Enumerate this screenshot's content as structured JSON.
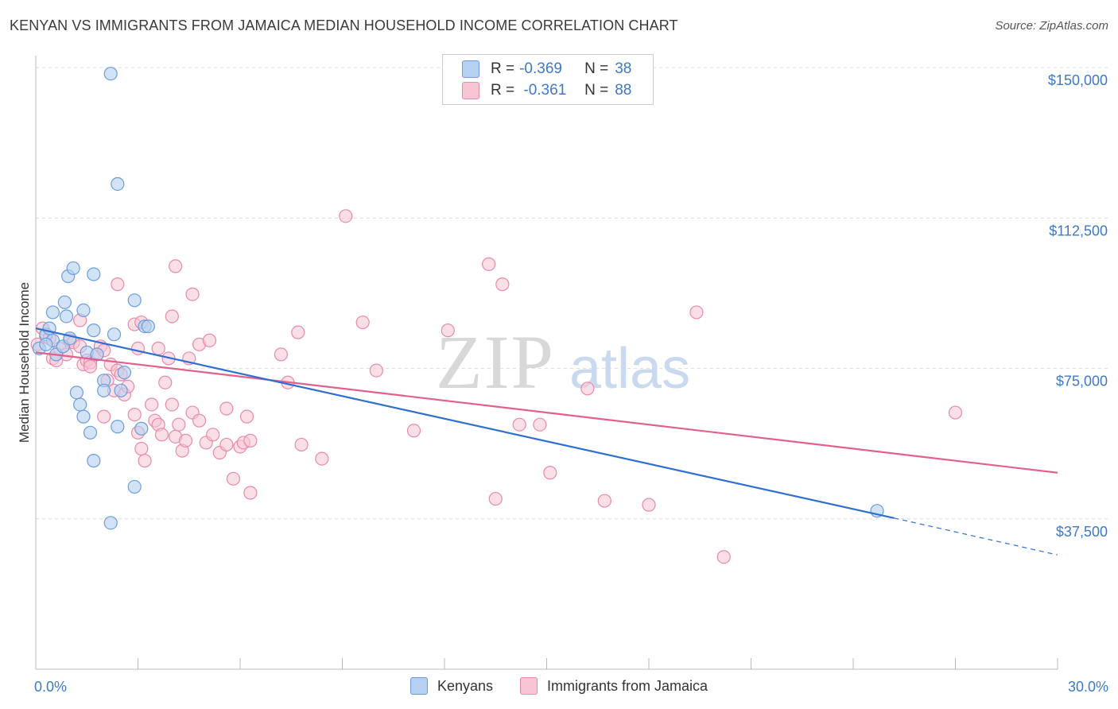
{
  "title": "KENYAN VS IMMIGRANTS FROM JAMAICA MEDIAN HOUSEHOLD INCOME CORRELATION CHART",
  "source": "Source: ZipAtlas.com",
  "watermark": {
    "zip": "ZIP",
    "atlas": "atlas"
  },
  "legend": {
    "rows": [
      {
        "r_label": "R = ",
        "r_value": "-0.369",
        "n_label": "N = ",
        "n_value": "38"
      },
      {
        "r_label": "R = ",
        "r_value": " -0.361",
        "n_label": "N = ",
        "n_value": "88"
      }
    ]
  },
  "bottom_legend": {
    "s1": "Kenyans",
    "s2": "Immigrants from Jamaica"
  },
  "colors": {
    "kenyan_fill": "#b5d0f0",
    "kenyan_stroke": "#6a9ddb",
    "kenyan_line": "#2f6fcf",
    "jamaica_fill": "#f8c5d4",
    "jamaica_stroke": "#e88aa8",
    "jamaica_line": "#e0608e",
    "axis_text": "#3d79c6"
  },
  "chart_data": {
    "type": "scatter",
    "title": "KENYAN VS IMMIGRANTS FROM JAMAICA MEDIAN HOUSEHOLD INCOME CORRELATION CHART",
    "xlabel": "",
    "ylabel": "Median Household Income",
    "xlim": [
      0,
      30
    ],
    "ylim": [
      0,
      153000
    ],
    "x_tick_labels": [
      "0.0%",
      "30.0%"
    ],
    "y_ticks": [
      37500,
      75000,
      112500,
      150000
    ],
    "y_tick_labels": [
      "$37,500",
      "$75,000",
      "$112,500",
      "$150,000"
    ],
    "grid": true,
    "legend_position": "top-center",
    "series": [
      {
        "name": "Kenyans",
        "r": -0.369,
        "n": 38,
        "points": [
          [
            0.1,
            80000
          ],
          [
            0.3,
            83500
          ],
          [
            0.5,
            82000
          ],
          [
            0.4,
            85000
          ],
          [
            0.6,
            78500
          ],
          [
            0.8,
            80500
          ],
          [
            1.0,
            82500
          ],
          [
            0.9,
            88000
          ],
          [
            0.5,
            89000
          ],
          [
            0.85,
            91500
          ],
          [
            0.95,
            98000
          ],
          [
            1.1,
            100000
          ],
          [
            1.4,
            89500
          ],
          [
            1.5,
            79000
          ],
          [
            1.7,
            84500
          ],
          [
            1.8,
            78500
          ],
          [
            1.2,
            69000
          ],
          [
            1.3,
            66000
          ],
          [
            1.4,
            63000
          ],
          [
            1.6,
            59000
          ],
          [
            1.7,
            52000
          ],
          [
            2.0,
            72000
          ],
          [
            2.0,
            69500
          ],
          [
            2.3,
            83500
          ],
          [
            2.4,
            60500
          ],
          [
            2.5,
            69500
          ],
          [
            2.6,
            74000
          ],
          [
            2.4,
            121000
          ],
          [
            2.2,
            148500
          ],
          [
            2.9,
            92000
          ],
          [
            3.2,
            85500
          ],
          [
            3.3,
            85500
          ],
          [
            3.1,
            60000
          ],
          [
            2.9,
            45500
          ],
          [
            2.2,
            36500
          ],
          [
            1.7,
            98500
          ],
          [
            0.3,
            81000
          ],
          [
            24.7,
            39500
          ]
        ],
        "trend": {
          "x": [
            0,
            25.2
          ],
          "y": [
            85000,
            37700
          ]
        },
        "trend_dashed": {
          "x": [
            25.2,
            30
          ],
          "y": [
            37700,
            28500
          ]
        }
      },
      {
        "name": "Immigrants from Jamaica",
        "r": -0.361,
        "n": 88,
        "points": [
          [
            0.05,
            81000
          ],
          [
            0.2,
            85000
          ],
          [
            0.3,
            83000
          ],
          [
            0.4,
            82500
          ],
          [
            0.5,
            77500
          ],
          [
            0.6,
            77000
          ],
          [
            0.7,
            80000
          ],
          [
            0.9,
            78500
          ],
          [
            1.0,
            82000
          ],
          [
            1.1,
            81500
          ],
          [
            1.3,
            80500
          ],
          [
            1.4,
            76000
          ],
          [
            1.5,
            77000
          ],
          [
            1.6,
            76500
          ],
          [
            1.6,
            75500
          ],
          [
            1.8,
            78500
          ],
          [
            1.9,
            80500
          ],
          [
            2.0,
            79500
          ],
          [
            2.1,
            72000
          ],
          [
            2.2,
            76000
          ],
          [
            2.3,
            69500
          ],
          [
            2.4,
            74500
          ],
          [
            2.5,
            73500
          ],
          [
            2.6,
            68500
          ],
          [
            2.7,
            70500
          ],
          [
            2.9,
            63500
          ],
          [
            3.0,
            59000
          ],
          [
            3.1,
            55000
          ],
          [
            3.2,
            52000
          ],
          [
            3.4,
            66000
          ],
          [
            3.5,
            62000
          ],
          [
            3.6,
            61000
          ],
          [
            3.7,
            58500
          ],
          [
            3.8,
            71500
          ],
          [
            3.9,
            77500
          ],
          [
            4.0,
            66000
          ],
          [
            4.1,
            58000
          ],
          [
            4.2,
            61000
          ],
          [
            4.3,
            54500
          ],
          [
            4.4,
            57000
          ],
          [
            4.5,
            77500
          ],
          [
            4.6,
            64000
          ],
          [
            4.8,
            62000
          ],
          [
            5.0,
            56500
          ],
          [
            5.2,
            58500
          ],
          [
            5.4,
            54000
          ],
          [
            5.6,
            56000
          ],
          [
            5.8,
            47500
          ],
          [
            6.0,
            55500
          ],
          [
            6.1,
            56500
          ],
          [
            6.3,
            44000
          ],
          [
            2.0,
            63000
          ],
          [
            1.3,
            87000
          ],
          [
            2.4,
            96000
          ],
          [
            2.9,
            86000
          ],
          [
            3.1,
            86500
          ],
          [
            3.0,
            80000
          ],
          [
            3.6,
            80000
          ],
          [
            4.0,
            88000
          ],
          [
            4.1,
            100500
          ],
          [
            4.8,
            81000
          ],
          [
            4.6,
            93500
          ],
          [
            5.1,
            82000
          ],
          [
            5.6,
            65000
          ],
          [
            6.2,
            63000
          ],
          [
            6.3,
            57000
          ],
          [
            7.2,
            78500
          ],
          [
            7.4,
            71500
          ],
          [
            7.7,
            84000
          ],
          [
            7.8,
            56000
          ],
          [
            8.4,
            52500
          ],
          [
            9.1,
            113000
          ],
          [
            9.6,
            86500
          ],
          [
            10.0,
            74500
          ],
          [
            11.1,
            59500
          ],
          [
            12.1,
            84500
          ],
          [
            13.3,
            101000
          ],
          [
            13.7,
            96000
          ],
          [
            13.5,
            42500
          ],
          [
            14.2,
            61000
          ],
          [
            14.8,
            61000
          ],
          [
            15.1,
            49000
          ],
          [
            16.2,
            70000
          ],
          [
            16.7,
            42000
          ],
          [
            18.0,
            41000
          ],
          [
            19.4,
            89000
          ],
          [
            20.2,
            28000
          ],
          [
            27.0,
            64000
          ]
        ],
        "trend": {
          "x": [
            0,
            30
          ],
          "y": [
            79000,
            49000
          ]
        }
      }
    ]
  }
}
